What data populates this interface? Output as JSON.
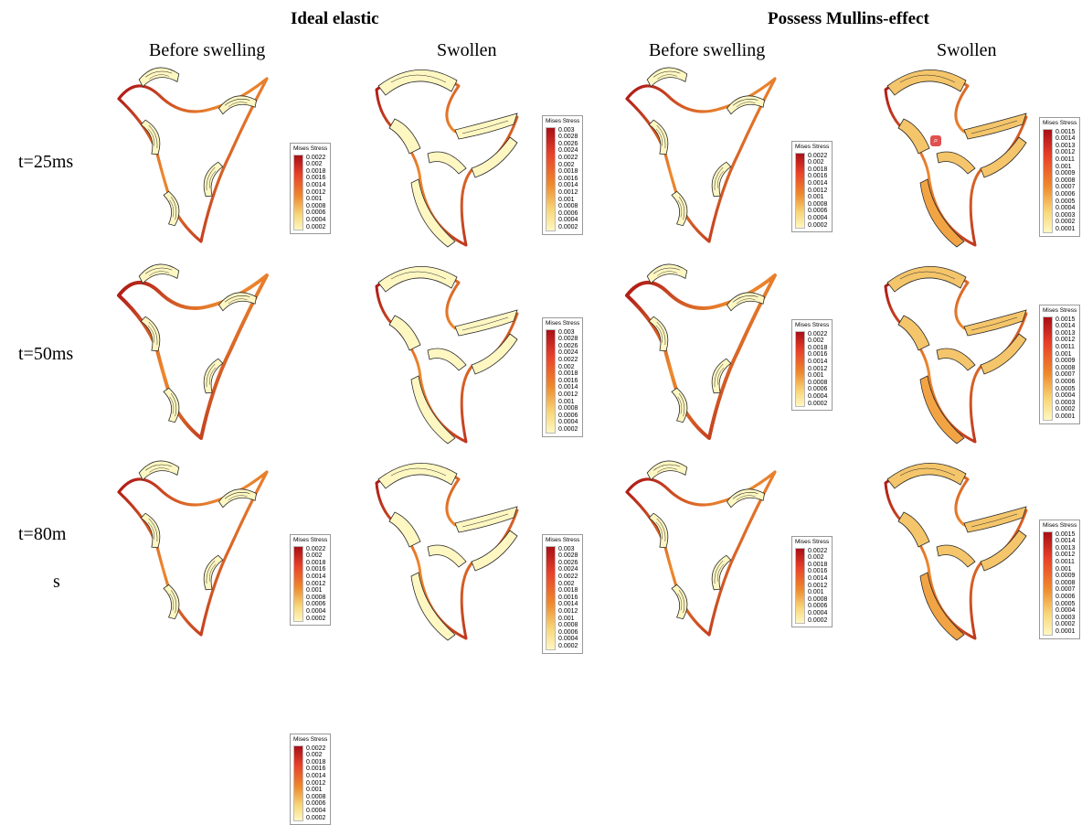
{
  "header": {
    "groups": [
      {
        "label": "Ideal elastic"
      },
      {
        "label": "Possess Mullins-effect"
      }
    ],
    "columns": [
      {
        "label": "Before swelling"
      },
      {
        "label": "Swollen"
      },
      {
        "label": "Before swelling"
      },
      {
        "label": "Swollen"
      }
    ]
  },
  "rows": [
    {
      "label": "t=25ms",
      "label_lines": [
        "t=25ms"
      ]
    },
    {
      "label": "t=50ms",
      "label_lines": [
        "t=50ms"
      ]
    },
    {
      "label": "t=80ms",
      "label_lines": [
        "t=80m",
        "s"
      ]
    }
  ],
  "legend_title": "Mises Stress",
  "legend_scales": {
    "before": [
      "0.0022",
      "0.002",
      "0.0018",
      "0.0016",
      "0.0014",
      "0.0012",
      "0.001",
      "0.0008",
      "0.0006",
      "0.0004",
      "0.0002"
    ],
    "ideal_swollen": [
      "0.003",
      "0.0028",
      "0.0026",
      "0.0024",
      "0.0022",
      "0.002",
      "0.0018",
      "0.0016",
      "0.0014",
      "0.0012",
      "0.001",
      "0.0008",
      "0.0006",
      "0.0004",
      "0.0002"
    ],
    "mullins_swollen": [
      "0.0015",
      "0.0014",
      "0.0013",
      "0.0012",
      "0.0011",
      "0.001",
      "0.0009",
      "0.0008",
      "0.0007",
      "0.0006",
      "0.0005",
      "0.0004",
      "0.0003",
      "0.0002",
      "0.0001"
    ]
  },
  "colors": {
    "stress_high": "#a80f16",
    "stress_mid": "#ee8a2e",
    "stress_low": "#fff7c2",
    "outline": "#2a2a2a"
  },
  "icons": {
    "marker": "zoom-marker-icon"
  }
}
